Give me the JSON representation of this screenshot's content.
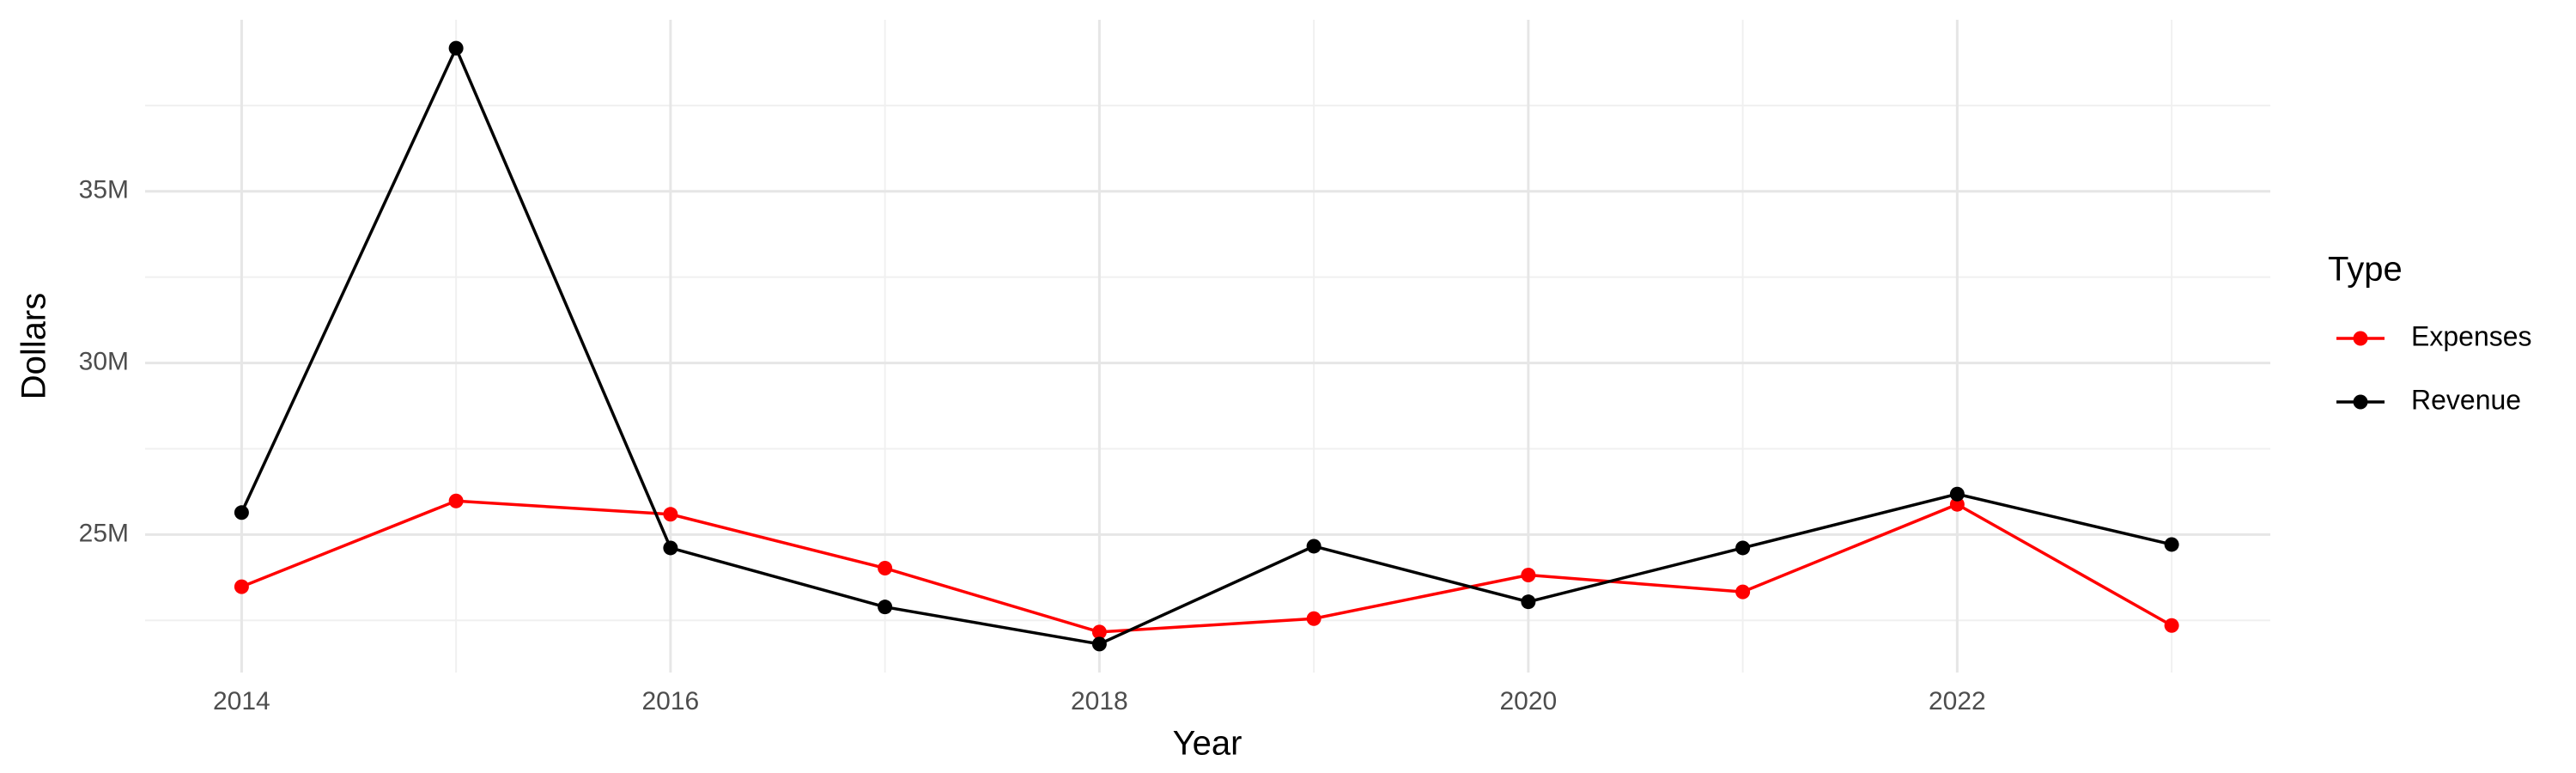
{
  "chart_data": {
    "type": "line",
    "x_label": "Year",
    "y_label": "Dollars",
    "x": [
      2014,
      2015,
      2016,
      2017,
      2018,
      2019,
      2020,
      2021,
      2022,
      2023
    ],
    "series": [
      {
        "name": "Expenses",
        "color": "#ff0000",
        "values": [
          23480000,
          25980000,
          25590000,
          24020000,
          22160000,
          22550000,
          23820000,
          23330000,
          25880000,
          22350000
        ]
      },
      {
        "name": "Revenue",
        "color": "#000000",
        "values": [
          25640000,
          39170000,
          24610000,
          22890000,
          21810000,
          24660000,
          23040000,
          24610000,
          26180000,
          24710000
        ]
      }
    ],
    "xlim": [
      2013.55,
      2023.46
    ],
    "xticks": [
      2014,
      2016,
      2018,
      2020,
      2022
    ],
    "ylim": [
      20980000,
      40000000
    ],
    "yticks": [
      {
        "value": 25000000,
        "label": "25M"
      },
      {
        "value": 30000000,
        "label": "30M"
      },
      {
        "value": 35000000,
        "label": "35M"
      }
    ],
    "grid": true,
    "legend": {
      "title": "Type",
      "position": "right"
    }
  }
}
